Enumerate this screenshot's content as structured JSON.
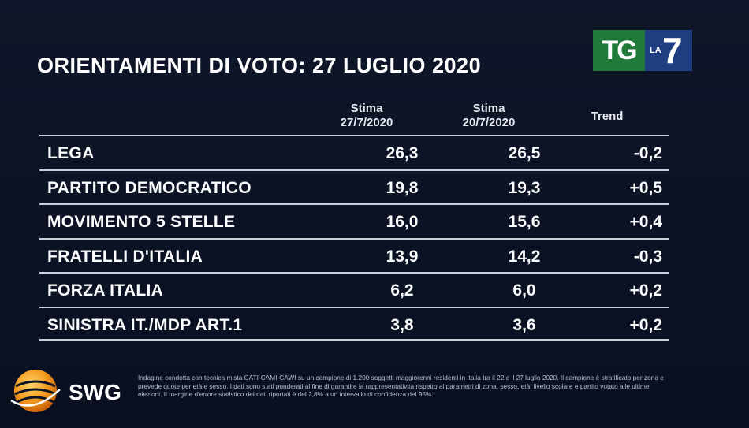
{
  "title": "ORIENTAMENTI DI VOTO: 27 LUGLIO 2020",
  "logo": {
    "tg": "TG",
    "la": "LA",
    "seven": "7"
  },
  "brand": {
    "name": "SWG"
  },
  "colors": {
    "background": "#0d1426",
    "tg_green": "#1f7a3a",
    "la7_blue": "#1f3e82",
    "swg_orange": "#f29a1e",
    "rule": "#c9ced8"
  },
  "chart_data": {
    "type": "table",
    "title": "ORIENTAMENTI DI VOTO: 27 LUGLIO 2020",
    "columns": [
      {
        "line1": "Stima",
        "line2": "27/7/2020"
      },
      {
        "line1": "Stima",
        "line2": "20/7/2020"
      },
      {
        "line1": "Trend",
        "line2": ""
      }
    ],
    "rows": [
      {
        "party": "LEGA",
        "v1": "26,3",
        "v2": "26,5",
        "trend": "-0,2"
      },
      {
        "party": "PARTITO DEMOCRATICO",
        "v1": "19,8",
        "v2": "19,3",
        "trend": "+0,5"
      },
      {
        "party": "MOVIMENTO 5 STELLE",
        "v1": "16,0",
        "v2": "15,6",
        "trend": "+0,4"
      },
      {
        "party": "FRATELLI D'ITALIA",
        "v1": "13,9",
        "v2": "14,2",
        "trend": "-0,3"
      },
      {
        "party": "FORZA ITALIA",
        "v1": "6,2",
        "v2": "6,0",
        "trend": "+0,2"
      },
      {
        "party": "SINISTRA IT./MDP ART.1",
        "v1": "3,8",
        "v2": "3,6",
        "trend": "+0,2"
      }
    ]
  },
  "footnote": "Indagine condotta con tecnica mista CATI-CAMI-CAWI su un campione di 1.200 soggetti maggiorenni residenti in Italia tra il 22 e il 27 luglio 2020. Il campione è stratificato per zona e prevede quote per età e sesso. I dati sono stati ponderati al fine di garantire la rappresentatività rispetto ai parametri di zona, sesso, età, livello scolare e partito votato alle ultime elezioni. Il margine d'errore statistico dei dati riportati è del 2,8% a un intervallo di confidenza del 95%."
}
